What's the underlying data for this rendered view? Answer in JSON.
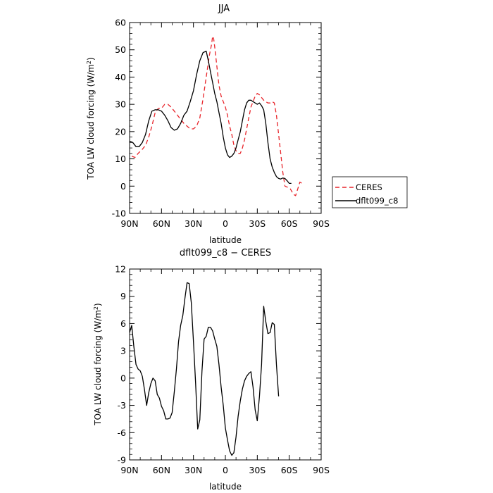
{
  "chart_data": [
    {
      "type": "line",
      "title": "JJA",
      "xlabel": "latitude",
      "ylabel": "TOA LW cloud forcing (W/m²)",
      "ylabel_parts": {
        "main": "TOA LW cloud forcing (W/m",
        "sup": "2",
        "end": ")"
      },
      "x_ticks": [
        "90N",
        "60N",
        "30N",
        "0",
        "30S",
        "60S",
        "90S"
      ],
      "x_tick_values": [
        90,
        60,
        30,
        0,
        -30,
        -60,
        -90
      ],
      "xlim": [
        90,
        -90
      ],
      "y_ticks": [
        "-10",
        "0",
        "10",
        "20",
        "30",
        "40",
        "50",
        "60"
      ],
      "ylim": [
        -10,
        60
      ],
      "legend_position": "right",
      "series": [
        {
          "name": "CERES",
          "color": "#e8242a",
          "dashed": true,
          "points": [
            [
              88,
              11.0
            ],
            [
              85,
              10.5
            ],
            [
              82,
              12
            ],
            [
              78,
              13.5
            ],
            [
              75,
              15
            ],
            [
              72,
              18
            ],
            [
              69,
              22
            ],
            [
              66,
              27
            ],
            [
              63,
              28.5
            ],
            [
              60,
              28.5
            ],
            [
              57,
              30
            ],
            [
              54,
              30
            ],
            [
              51,
              29
            ],
            [
              48,
              27.5
            ],
            [
              45,
              26
            ],
            [
              42,
              24.5
            ],
            [
              39,
              23
            ],
            [
              36,
              22
            ],
            [
              33,
              21
            ],
            [
              30,
              21
            ],
            [
              27,
              22
            ],
            [
              24,
              25
            ],
            [
              21,
              32
            ],
            [
              18,
              40
            ],
            [
              15,
              48
            ],
            [
              13,
              52
            ],
            [
              12,
              55
            ],
            [
              11,
              54
            ],
            [
              10,
              51
            ],
            [
              8,
              44
            ],
            [
              6,
              37
            ],
            [
              4,
              33
            ],
            [
              2,
              31
            ],
            [
              0,
              29
            ],
            [
              -2,
              26
            ],
            [
              -4,
              22
            ],
            [
              -6,
              19
            ],
            [
              -8,
              15
            ],
            [
              -10,
              13
            ],
            [
              -12,
              12
            ],
            [
              -14,
              12
            ],
            [
              -16,
              14
            ],
            [
              -18,
              17
            ],
            [
              -20,
              21
            ],
            [
              -22,
              25
            ],
            [
              -24,
              29
            ],
            [
              -26,
              31
            ],
            [
              -28,
              33
            ],
            [
              -30,
              34
            ],
            [
              -32,
              33.5
            ],
            [
              -34,
              32.5
            ],
            [
              -36,
              31.5
            ],
            [
              -38,
              31
            ],
            [
              -40,
              30.5
            ],
            [
              -42,
              30.5
            ],
            [
              -44,
              31
            ],
            [
              -46,
              30.5
            ],
            [
              -48,
              26
            ],
            [
              -50,
              19
            ],
            [
              -52,
              12
            ],
            [
              -54,
              5
            ],
            [
              -56,
              0
            ],
            [
              -59,
              -0.5
            ],
            [
              -61,
              -1
            ],
            [
              -64,
              -3
            ],
            [
              -66,
              -3.5
            ],
            [
              -68,
              -1
            ],
            [
              -70,
              1.5
            ],
            [
              -72,
              1
            ]
          ]
        },
        {
          "name": "dflt099_c8",
          "color": "#000000",
          "dashed": false,
          "points": [
            [
              90,
              16.5
            ],
            [
              87,
              16
            ],
            [
              84,
              14.5
            ],
            [
              81,
              14.5
            ],
            [
              78,
              16
            ],
            [
              75,
              19
            ],
            [
              72,
              24
            ],
            [
              69,
              27.5
            ],
            [
              66,
              28
            ],
            [
              63,
              28
            ],
            [
              60,
              27.5
            ],
            [
              57,
              26
            ],
            [
              54,
              24
            ],
            [
              51,
              21.5
            ],
            [
              48,
              20.5
            ],
            [
              45,
              21
            ],
            [
              42,
              23
            ],
            [
              39,
              26
            ],
            [
              36,
              27.5
            ],
            [
              33,
              31
            ],
            [
              30,
              35
            ],
            [
              27,
              41
            ],
            [
              24,
              46
            ],
            [
              21,
              49
            ],
            [
              18,
              49.5
            ],
            [
              16,
              46
            ],
            [
              14,
              42
            ],
            [
              12,
              38
            ],
            [
              10,
              34
            ],
            [
              8,
              31
            ],
            [
              6,
              27
            ],
            [
              4,
              23
            ],
            [
              2,
              18
            ],
            [
              0,
              14
            ],
            [
              -2,
              11.5
            ],
            [
              -4,
              10.5
            ],
            [
              -6,
              11
            ],
            [
              -8,
              12
            ],
            [
              -10,
              14
            ],
            [
              -12,
              17
            ],
            [
              -14,
              20
            ],
            [
              -16,
              24
            ],
            [
              -18,
              28
            ],
            [
              -20,
              30.5
            ],
            [
              -22,
              31.5
            ],
            [
              -24,
              31.5
            ],
            [
              -26,
              31
            ],
            [
              -28,
              30.5
            ],
            [
              -30,
              30
            ],
            [
              -32,
              30.5
            ],
            [
              -34,
              29.5
            ],
            [
              -36,
              28
            ],
            [
              -38,
              23
            ],
            [
              -40,
              16
            ],
            [
              -42,
              10
            ],
            [
              -44,
              7
            ],
            [
              -46,
              5
            ],
            [
              -48,
              3.5
            ],
            [
              -50,
              2.8
            ],
            [
              -52,
              2.6
            ],
            [
              -54,
              3
            ],
            [
              -56,
              2.8
            ],
            [
              -58,
              2
            ],
            [
              -60,
              1
            ],
            [
              -62,
              1
            ]
          ]
        }
      ]
    },
    {
      "type": "line",
      "title": "dflt099_c8 − CERES",
      "xlabel": "latitude",
      "ylabel": "TOA LW cloud forcing (W/m²)",
      "ylabel_parts": {
        "main": "TOA LW cloud forcing (W/m",
        "sup": "2",
        "end": ")"
      },
      "x_ticks": [
        "90N",
        "60N",
        "30N",
        "0",
        "30S",
        "60S",
        "90S"
      ],
      "x_tick_values": [
        90,
        60,
        30,
        0,
        -30,
        -60,
        -90
      ],
      "xlim": [
        90,
        -90
      ],
      "y_ticks": [
        "-9",
        "-6",
        "-3",
        "0",
        "3",
        "6",
        "9",
        "12"
      ],
      "ylim": [
        -9,
        12
      ],
      "series": [
        {
          "name": "",
          "color": "#000000",
          "dashed": false,
          "points": [
            [
              90,
              5
            ],
            [
              88,
              5.8
            ],
            [
              86,
              3.5
            ],
            [
              84,
              1.5
            ],
            [
              82,
              1.0
            ],
            [
              80,
              0.8
            ],
            [
              78,
              0.2
            ],
            [
              76,
              -1.3
            ],
            [
              74,
              -3.0
            ],
            [
              72,
              -1.6
            ],
            [
              70,
              -0.6
            ],
            [
              68,
              0
            ],
            [
              66,
              -0.3
            ],
            [
              64,
              -1.8
            ],
            [
              62,
              -2.2
            ],
            [
              60,
              -3.1
            ],
            [
              58,
              -3.6
            ],
            [
              56,
              -4.5
            ],
            [
              54,
              -4.5
            ],
            [
              52,
              -4.4
            ],
            [
              50,
              -3.8
            ],
            [
              48,
              -1.5
            ],
            [
              46,
              1.0
            ],
            [
              44,
              4.0
            ],
            [
              42,
              5.8
            ],
            [
              40,
              6.9
            ],
            [
              38,
              8.8
            ],
            [
              36,
              10.5
            ],
            [
              34,
              10.4
            ],
            [
              32,
              8.3
            ],
            [
              30,
              4.0
            ],
            [
              28,
              -0.5
            ],
            [
              26,
              -5.6
            ],
            [
              24,
              -4.6
            ],
            [
              22,
              0.8
            ],
            [
              20,
              4.3
            ],
            [
              18,
              4.6
            ],
            [
              16,
              5.6
            ],
            [
              14,
              5.6
            ],
            [
              12,
              5.2
            ],
            [
              10,
              4.3
            ],
            [
              8,
              3.5
            ],
            [
              6,
              1.5
            ],
            [
              4,
              -1.0
            ],
            [
              2,
              -3.0
            ],
            [
              0,
              -5.5
            ],
            [
              -2,
              -6.8
            ],
            [
              -4,
              -8.0
            ],
            [
              -6,
              -8.5
            ],
            [
              -8,
              -8.2
            ],
            [
              -10,
              -6.5
            ],
            [
              -12,
              -4.2
            ],
            [
              -14,
              -2.5
            ],
            [
              -16,
              -1.2
            ],
            [
              -18,
              -0.3
            ],
            [
              -20,
              0.2
            ],
            [
              -22,
              0.5
            ],
            [
              -24,
              0.7
            ],
            [
              -26,
              -1.0
            ],
            [
              -28,
              -3.5
            ],
            [
              -30,
              -4.7
            ],
            [
              -32,
              -2.0
            ],
            [
              -34,
              1.5
            ],
            [
              -36,
              7.9
            ],
            [
              -38,
              6.2
            ],
            [
              -40,
              4.9
            ],
            [
              -42,
              5.0
            ],
            [
              -44,
              6.1
            ],
            [
              -46,
              5.9
            ],
            [
              -48,
              1.5
            ],
            [
              -50,
              -2.0
            ]
          ]
        }
      ]
    }
  ]
}
